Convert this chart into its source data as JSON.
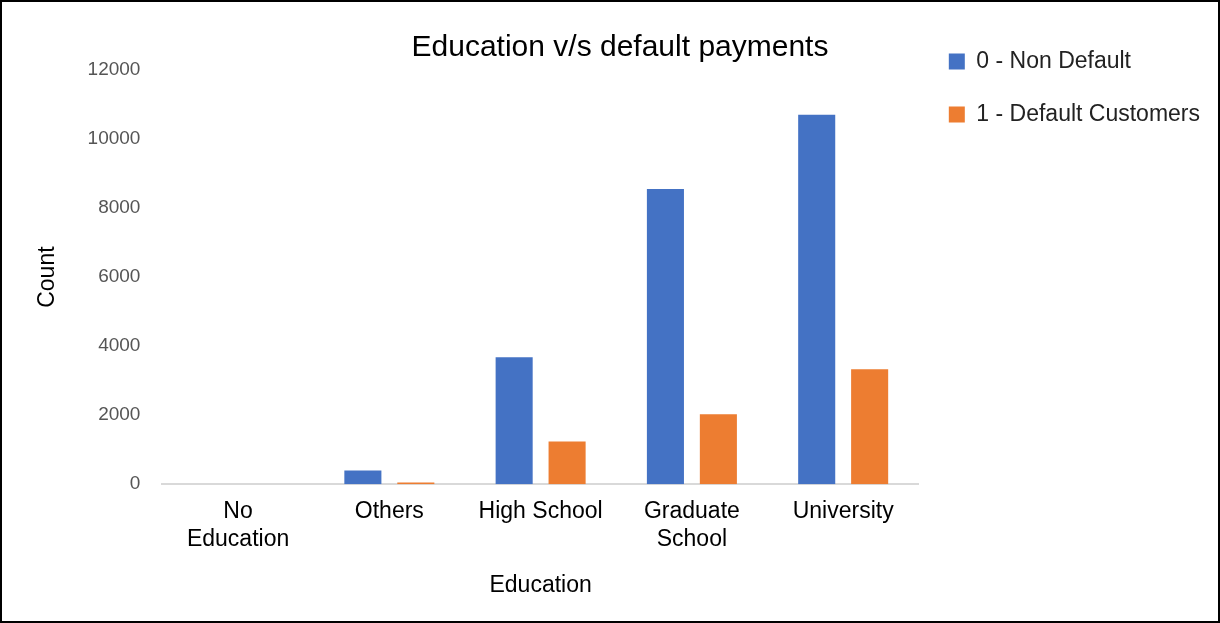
{
  "chart_data": {
    "type": "bar",
    "title": "Education v/s default payments",
    "xlabel": "Education",
    "ylabel": "Count",
    "categories": [
      "No Education",
      "Others",
      "High School",
      "Graduate School",
      "University"
    ],
    "series": [
      {
        "name": "0 - Non Default",
        "color": "#4472c4",
        "values": [
          0,
          400,
          3680,
          8550,
          10700
        ]
      },
      {
        "name": "1 - Default Customers",
        "color": "#ed7d31",
        "values": [
          0,
          50,
          1240,
          2030,
          3330
        ]
      }
    ],
    "ylim": [
      0,
      12000
    ],
    "yticks": [
      0,
      2000,
      4000,
      6000,
      8000,
      10000,
      12000
    ],
    "grid": false,
    "legend": "top right"
  }
}
